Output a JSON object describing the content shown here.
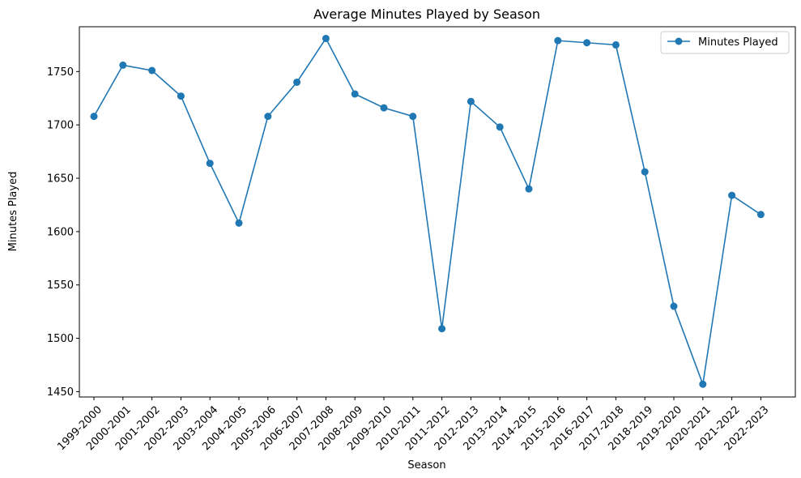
{
  "chart_data": {
    "type": "line",
    "title": "Average Minutes Played by Season",
    "xlabel": "Season",
    "ylabel": "Minutes Played",
    "categories": [
      "1999-2000",
      "2000-2001",
      "2001-2002",
      "2002-2003",
      "2003-2004",
      "2004-2005",
      "2005-2006",
      "2006-2007",
      "2007-2008",
      "2008-2009",
      "2009-2010",
      "2010-2011",
      "2011-2012",
      "2012-2013",
      "2013-2014",
      "2014-2015",
      "2015-2016",
      "2016-2017",
      "2017-2018",
      "2018-2019",
      "2019-2020",
      "2020-2021",
      "2021-2022",
      "2022-2023"
    ],
    "series": [
      {
        "name": "Minutes Played",
        "color": "#1f77b4",
        "marker": "circle",
        "values": [
          1708,
          1756,
          1751,
          1727,
          1664,
          1608,
          1708,
          1740,
          1781,
          1729,
          1716,
          1708,
          1509,
          1722,
          1698,
          1640,
          1779,
          1777,
          1775,
          1656,
          1530,
          1457,
          1634,
          1616
        ]
      }
    ],
    "ylim": [
      1445,
      1792
    ],
    "yticks": [
      1450,
      1500,
      1550,
      1600,
      1650,
      1700,
      1750
    ],
    "grid": false,
    "legend": "top-right"
  }
}
